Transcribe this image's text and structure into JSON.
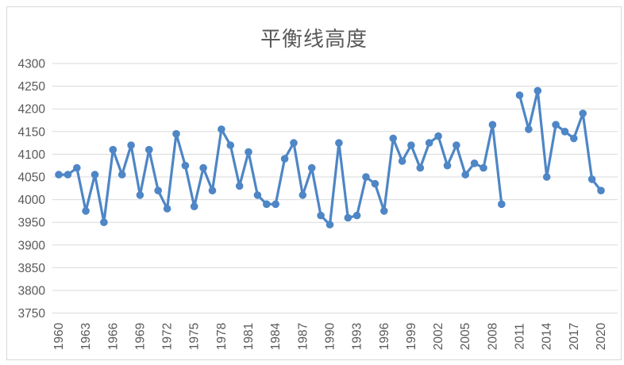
{
  "chart": {
    "accent_color": "#4e86c6",
    "gridline_color": "#d9d9d9",
    "text_color": "#595959",
    "border_color": "#d9d9d9",
    "background": "#ffffff"
  },
  "chart_data": {
    "type": "line",
    "title": "平衡线高度",
    "xlabel": "",
    "ylabel": "",
    "ylim": [
      3750,
      4300
    ],
    "ytick_step": 50,
    "xtick_step": 3,
    "grid": true,
    "legend_position": "none",
    "marker": "circle",
    "x": [
      1960,
      1961,
      1962,
      1963,
      1964,
      1965,
      1966,
      1967,
      1968,
      1969,
      1970,
      1971,
      1972,
      1973,
      1974,
      1975,
      1976,
      1977,
      1978,
      1979,
      1980,
      1981,
      1982,
      1983,
      1984,
      1985,
      1986,
      1987,
      1988,
      1989,
      1990,
      1991,
      1992,
      1993,
      1994,
      1995,
      1996,
      1997,
      1998,
      1999,
      2000,
      2001,
      2002,
      2003,
      2004,
      2005,
      2006,
      2007,
      2008,
      2009,
      2010,
      2011,
      2012,
      2013,
      2014,
      2015,
      2016,
      2017,
      2018,
      2019,
      2020
    ],
    "values": [
      4055,
      4055,
      4070,
      3975,
      4055,
      3950,
      4110,
      4055,
      4120,
      4010,
      4110,
      4020,
      3980,
      4145,
      4075,
      3985,
      4070,
      4020,
      4155,
      4120,
      4030,
      4105,
      4010,
      3990,
      3990,
      4090,
      4125,
      4010,
      4070,
      3965,
      3945,
      4125,
      3960,
      3965,
      4050,
      4035,
      3975,
      4135,
      4085,
      4120,
      4070,
      4125,
      4140,
      4075,
      4120,
      4055,
      4080,
      4070,
      4165,
      3990,
      null,
      4230,
      4155,
      4240,
      4050,
      4165,
      4150,
      4135,
      4190,
      4045,
      4020
    ],
    "note_missing_years": [
      2010
    ]
  }
}
